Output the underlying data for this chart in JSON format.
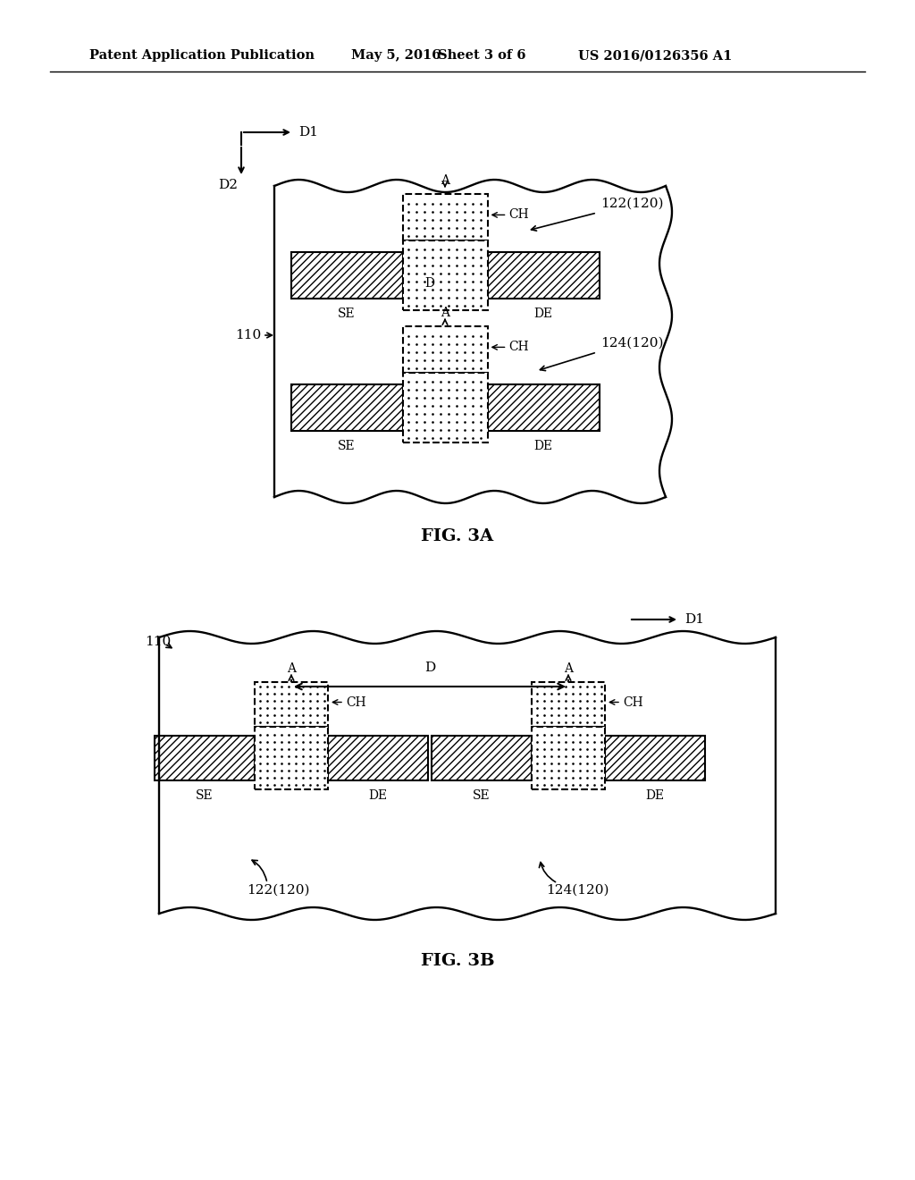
{
  "bg": "#ffffff",
  "header_left": "Patent Application Publication",
  "header_date": "May 5, 2016",
  "header_sheet": "Sheet 3 of 6",
  "header_patent": "US 2016/0126356 A1",
  "fig3a": "FIG. 3A",
  "fig3b": "FIG. 3B",
  "D1": "D1",
  "D2": "D2",
  "D": "D",
  "A": "A",
  "CH": "CH",
  "SE": "SE",
  "DE": "DE",
  "lbl_110": "110",
  "lbl_122": "122(120)",
  "lbl_124": "124(120)"
}
